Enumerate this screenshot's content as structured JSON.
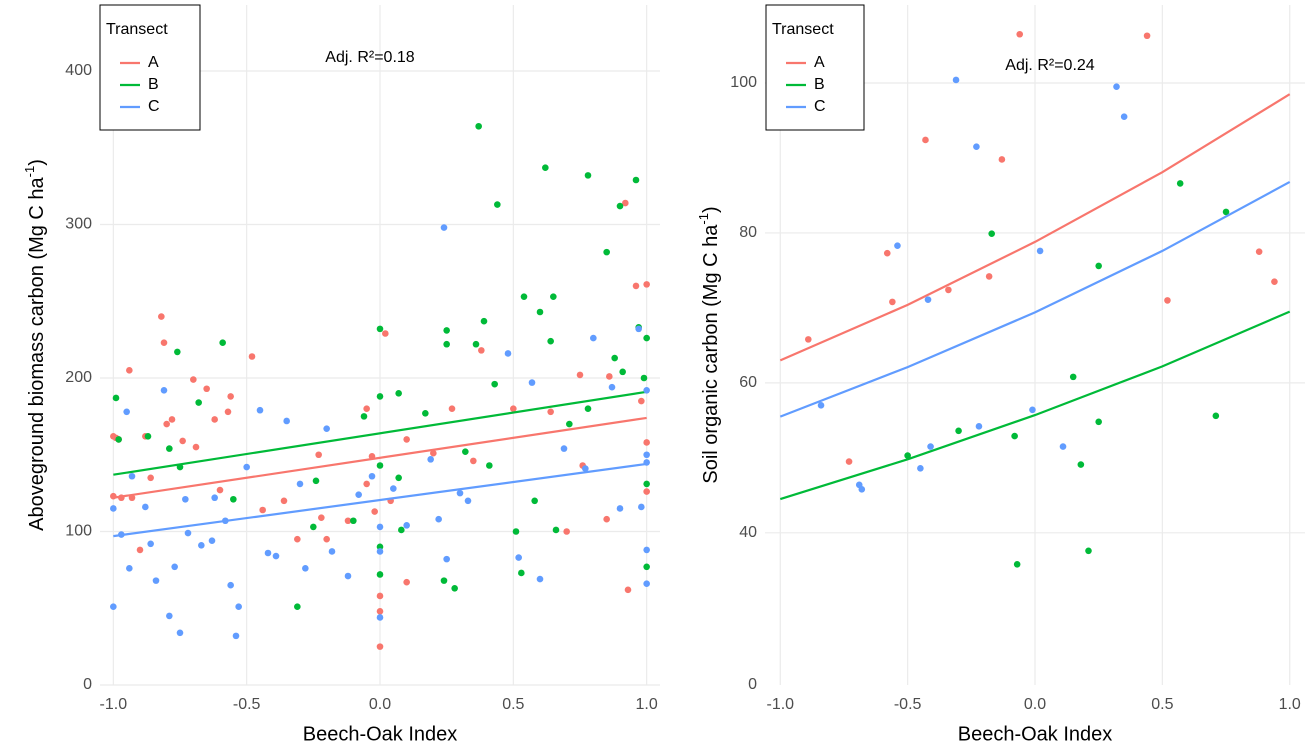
{
  "chart_data": [
    {
      "type": "scatter",
      "xlabel": "Beech-Oak Index",
      "ylabel": "Aboveground biomass carbon  (Mg C ha",
      "ylabel_sup": "-1",
      "ylabel_end": ")",
      "annotation": "Adj. R²=0.18",
      "legend_title": "Transect",
      "xlim": [
        -1.05,
        1.05
      ],
      "ylim": [
        0,
        443
      ],
      "xticks": [
        {
          "value": -1,
          "label": "-1.0"
        },
        {
          "value": -0.5,
          "label": "-0.5"
        },
        {
          "value": 0,
          "label": "0.0"
        },
        0.5,
        {
          "value": 1,
          "label": "1.0"
        }
      ],
      "yticks": [
        0,
        100,
        200,
        300,
        400
      ],
      "grid": true,
      "series": [
        {
          "name": "A",
          "color": "#F8766D",
          "x": [
            -1,
            -0.99,
            -0.98,
            -1,
            -0.97,
            -0.94,
            -0.93,
            -0.9,
            -0.88,
            -0.86,
            -0.82,
            -0.81,
            -0.8,
            -0.78,
            -0.74,
            -0.7,
            -0.69,
            -0.65,
            -0.62,
            -0.6,
            -0.57,
            -0.56,
            -0.48,
            -0.44,
            -0.36,
            -0.31,
            -0.23,
            -0.22,
            -0.2,
            -0.12,
            -0.05,
            -0.05,
            -0.03,
            -0.02,
            0,
            0,
            0,
            0.02,
            0.04,
            0.1,
            0.1,
            0.2,
            0.27,
            0.35,
            0.38,
            0.5,
            0.64,
            0.7,
            0.75,
            0.76,
            0.85,
            0.86,
            0.92,
            0.93,
            0.96,
            0.98,
            1,
            1,
            1
          ],
          "values": [
            162,
            161,
            160,
            123,
            122,
            205,
            122,
            88,
            162,
            135,
            240,
            223,
            170,
            173,
            159,
            199,
            155,
            193,
            173,
            127,
            178,
            188,
            214,
            114,
            120,
            95,
            150,
            109,
            95,
            107,
            180,
            131,
            149,
            113,
            48,
            25,
            58,
            229,
            120,
            67,
            160,
            151,
            180,
            146,
            218,
            180,
            178,
            100,
            202,
            143,
            108,
            201,
            314,
            62,
            260,
            185,
            261,
            126,
            158
          ],
          "fit_x": [
            -1,
            1
          ],
          "fit_values": [
            122,
            174
          ]
        },
        {
          "name": "B",
          "color": "#00BA38",
          "x": [
            -0.99,
            -0.98,
            -0.87,
            -0.79,
            -0.76,
            -0.75,
            -0.68,
            -0.59,
            -0.55,
            -0.31,
            -0.25,
            -0.24,
            -0.1,
            -0.06,
            0,
            0,
            0,
            0,
            0,
            0.07,
            0.07,
            0.08,
            0.17,
            0.24,
            0.25,
            0.25,
            0.28,
            0.32,
            0.36,
            0.37,
            0.39,
            0.41,
            0.44,
            0.43,
            0.51,
            0.53,
            0.54,
            0.58,
            0.6,
            0.62,
            0.64,
            0.65,
            0.66,
            0.71,
            0.78,
            0.78,
            0.85,
            0.88,
            0.9,
            0.91,
            0.96,
            0.97,
            0.99,
            1,
            1,
            1
          ],
          "values": [
            187,
            160,
            162,
            154,
            217,
            142,
            184,
            223,
            121,
            51,
            103,
            133,
            107,
            175,
            232,
            143,
            188,
            72,
            90,
            190,
            135,
            101,
            177,
            68,
            231,
            222,
            63,
            152,
            222,
            364,
            237,
            143,
            313,
            196,
            100,
            73,
            253,
            120,
            243,
            337,
            224,
            253,
            101,
            170,
            332,
            180,
            282,
            213,
            312,
            204,
            329,
            233,
            200,
            226,
            131,
            77
          ],
          "fit_x": [
            -1,
            1
          ],
          "fit_values": [
            137,
            191
          ]
        },
        {
          "name": "C",
          "color": "#619CFF",
          "x": [
            -1,
            -1,
            -0.97,
            -0.95,
            -0.94,
            -0.93,
            -0.88,
            -0.86,
            -0.84,
            -0.81,
            -0.79,
            -0.77,
            -0.75,
            -0.73,
            -0.72,
            -0.67,
            -0.63,
            -0.62,
            -0.58,
            -0.56,
            -0.54,
            -0.53,
            -0.5,
            -0.45,
            -0.42,
            -0.39,
            -0.35,
            -0.3,
            -0.28,
            -0.2,
            -0.18,
            -0.12,
            -0.08,
            -0.03,
            0,
            0,
            0,
            0.05,
            0.1,
            0.19,
            0.22,
            0.24,
            0.25,
            0.3,
            0.33,
            0.48,
            0.52,
            0.57,
            0.6,
            0.69,
            0.77,
            0.8,
            0.87,
            0.9,
            0.97,
            0.98,
            1,
            1,
            1,
            1,
            1
          ],
          "values": [
            51,
            115,
            98,
            178,
            76,
            136,
            116,
            92,
            68,
            192,
            45,
            77,
            34,
            121,
            99,
            91,
            94,
            122,
            107,
            65,
            32,
            51,
            142,
            179,
            86,
            84,
            172,
            131,
            76,
            167,
            87,
            71,
            124,
            136,
            87,
            103,
            44,
            128,
            104,
            147,
            108,
            298,
            82,
            125,
            120,
            216,
            83,
            197,
            69,
            154,
            141,
            226,
            194,
            115,
            232,
            116,
            150,
            192,
            88,
            66,
            145
          ],
          "fit_x": [
            -1,
            1
          ],
          "fit_values": [
            97,
            144
          ]
        }
      ]
    },
    {
      "type": "scatter",
      "xlabel": "Beech-Oak Index",
      "ylabel": "Soil organic carbon (Mg C ha",
      "ylabel_sup": "-1",
      "ylabel_end": ")",
      "annotation": "Adj. R²=0.24",
      "legend_title": "Transect",
      "y_origin_label": "0",
      "xlim": [
        -1.06,
        1.06
      ],
      "ylim": [
        19.7,
        110.4
      ],
      "xticks": [
        {
          "value": -1,
          "label": "-1.0"
        },
        {
          "value": -0.5,
          "label": "-0.5"
        },
        {
          "value": 0,
          "label": "0.0"
        },
        0.5,
        {
          "value": 1,
          "label": "1.0"
        }
      ],
      "yticks": [
        40,
        60,
        80,
        100
      ],
      "grid": true,
      "series": [
        {
          "name": "A",
          "color": "#F8766D",
          "x": [
            -0.89,
            -0.73,
            -0.58,
            -0.56,
            -0.43,
            -0.34,
            -0.18,
            -0.13,
            -0.06,
            0.44,
            0.52,
            0.88,
            0.94
          ],
          "values": [
            65.8,
            49.5,
            77.3,
            70.8,
            92.4,
            72.4,
            74.2,
            89.8,
            106.5,
            106.3,
            71,
            77.5,
            73.5
          ],
          "fit_x": [
            -1,
            -0.5,
            0,
            0.5,
            1
          ],
          "fit_values": [
            63,
            70.4,
            78.8,
            88.1,
            98.5
          ]
        },
        {
          "name": "B",
          "color": "#00BA38",
          "x": [
            -0.5,
            -0.3,
            -0.17,
            -0.08,
            -0.07,
            0.15,
            0.18,
            0.21,
            0.25,
            0.25,
            0.57,
            0.71,
            0.75
          ],
          "values": [
            50.3,
            53.6,
            79.9,
            52.9,
            35.8,
            60.8,
            49.1,
            37.6,
            75.6,
            54.8,
            86.6,
            55.6,
            82.8
          ],
          "fit_x": [
            -1,
            -0.5,
            0,
            0.5,
            1
          ],
          "fit_values": [
            44.5,
            49.8,
            55.7,
            62.2,
            69.5
          ]
        },
        {
          "name": "C",
          "color": "#619CFF",
          "x": [
            -0.84,
            -0.69,
            -0.68,
            -0.54,
            -0.45,
            -0.42,
            -0.41,
            -0.31,
            -0.23,
            -0.22,
            -0.01,
            0.02,
            0.11,
            0.32,
            0.35
          ],
          "values": [
            57,
            46.4,
            45.8,
            78.3,
            48.6,
            71.1,
            51.5,
            100.4,
            91.5,
            54.2,
            56.4,
            77.6,
            51.5,
            99.5,
            95.5
          ],
          "fit_x": [
            -1,
            -0.5,
            0,
            0.5,
            1
          ],
          "fit_values": [
            55.5,
            62.1,
            69.4,
            77.6,
            86.8
          ]
        }
      ]
    }
  ]
}
